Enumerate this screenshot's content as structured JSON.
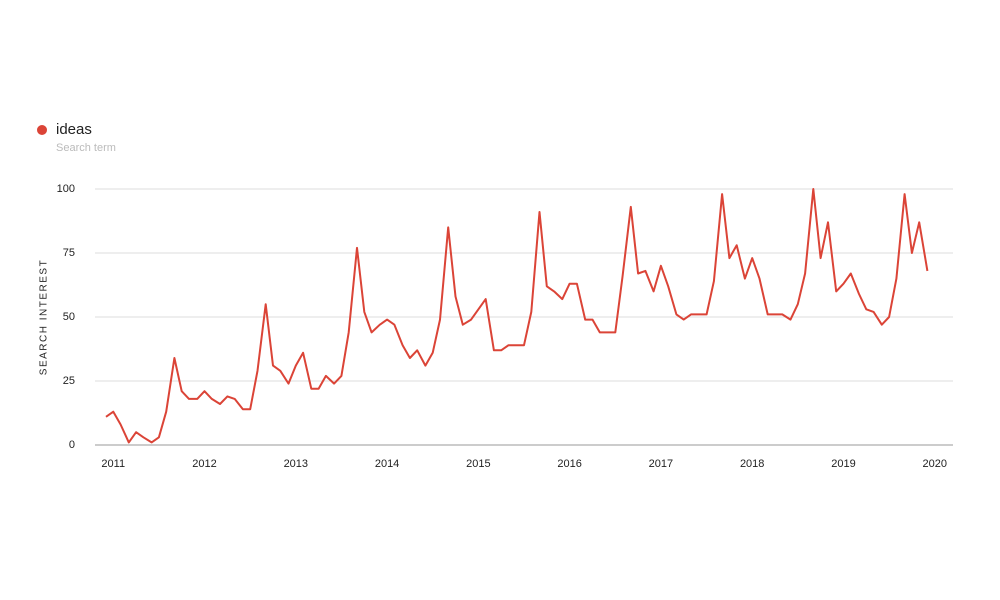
{
  "chart_data": {
    "type": "line",
    "legend_title": "ideas",
    "legend_subtitle": "Search term",
    "y_label": "SEARCH INTEREST",
    "x": [
      2010.92,
      2011.0,
      2011.08,
      2011.17,
      2011.25,
      2011.33,
      2011.42,
      2011.5,
      2011.58,
      2011.67,
      2011.75,
      2011.83,
      2011.92,
      2012.0,
      2012.08,
      2012.17,
      2012.25,
      2012.33,
      2012.42,
      2012.5,
      2012.58,
      2012.67,
      2012.75,
      2012.83,
      2012.92,
      2013.0,
      2013.08,
      2013.17,
      2013.25,
      2013.33,
      2013.42,
      2013.5,
      2013.58,
      2013.67,
      2013.75,
      2013.83,
      2013.92,
      2014.0,
      2014.08,
      2014.17,
      2014.25,
      2014.33,
      2014.42,
      2014.5,
      2014.58,
      2014.67,
      2014.75,
      2014.83,
      2014.92,
      2015.0,
      2015.08,
      2015.17,
      2015.25,
      2015.33,
      2015.42,
      2015.5,
      2015.58,
      2015.67,
      2015.75,
      2015.83,
      2015.92,
      2016.0,
      2016.08,
      2016.17,
      2016.25,
      2016.33,
      2016.42,
      2016.5,
      2016.58,
      2016.67,
      2016.75,
      2016.83,
      2016.92,
      2017.0,
      2017.08,
      2017.17,
      2017.25,
      2017.33,
      2017.42,
      2017.5,
      2017.58,
      2017.67,
      2017.75,
      2017.83,
      2017.92,
      2018.0,
      2018.08,
      2018.17,
      2018.25,
      2018.33,
      2018.42,
      2018.5,
      2018.58,
      2018.67,
      2018.75,
      2018.83,
      2018.92,
      2019.0,
      2019.08,
      2019.17,
      2019.25,
      2019.33,
      2019.42,
      2019.5,
      2019.58,
      2019.67,
      2019.75,
      2019.83,
      2019.92
    ],
    "series": [
      {
        "name": "ideas",
        "color": "#db4437",
        "values": [
          11,
          13,
          8,
          1,
          5,
          3,
          1,
          3,
          13,
          34,
          21,
          18,
          18,
          21,
          18,
          16,
          19,
          18,
          14,
          14,
          29,
          55,
          31,
          29,
          24,
          31,
          36,
          22,
          22,
          27,
          24,
          27,
          44,
          77,
          52,
          44,
          47,
          49,
          47,
          39,
          34,
          37,
          31,
          36,
          49,
          85,
          58,
          47,
          49,
          53,
          57,
          37,
          37,
          39,
          39,
          39,
          52,
          91,
          62,
          60,
          57,
          63,
          63,
          49,
          49,
          44,
          44,
          44,
          66,
          93,
          67,
          68,
          60,
          70,
          62,
          51,
          49,
          51,
          51,
          51,
          64,
          98,
          73,
          78,
          65,
          73,
          65,
          51,
          51,
          51,
          49,
          55,
          67,
          100,
          73,
          87,
          60,
          63,
          67,
          59,
          53,
          52,
          47,
          50,
          65,
          98,
          75,
          87,
          68
        ]
      }
    ],
    "xlim": [
      2010.8,
      2020.2
    ],
    "xticks": [
      2011,
      2012,
      2013,
      2014,
      2015,
      2016,
      2017,
      2018,
      2019,
      2020
    ],
    "ylim": [
      0,
      100
    ],
    "yticks": [
      0,
      25,
      50,
      75,
      100
    ],
    "grid": true
  }
}
